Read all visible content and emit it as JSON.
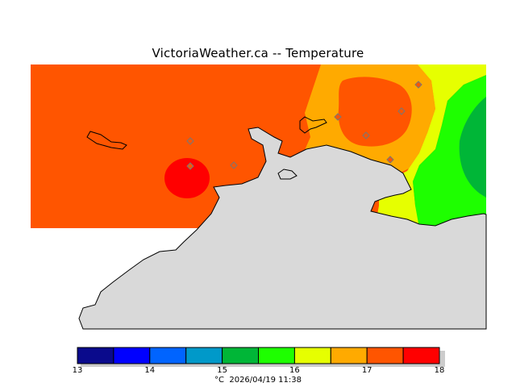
{
  "title": "VictoriaWeather.ca -- Temperature",
  "legend": {
    "bins": [
      {
        "from": 13.0,
        "to": 13.5,
        "color": "#0a0a8c"
      },
      {
        "from": 13.5,
        "to": 14.0,
        "color": "#0000ff"
      },
      {
        "from": 14.0,
        "to": 14.5,
        "color": "#0064ff"
      },
      {
        "from": 14.5,
        "to": 15.0,
        "color": "#0099c9"
      },
      {
        "from": 15.0,
        "to": 15.5,
        "color": "#00b637"
      },
      {
        "from": 15.5,
        "to": 16.0,
        "color": "#1eff00"
      },
      {
        "from": 16.0,
        "to": 16.5,
        "color": "#e6ff00"
      },
      {
        "from": 16.5,
        "to": 17.0,
        "color": "#ffaa00"
      },
      {
        "from": 17.0,
        "to": 17.5,
        "color": "#ff5500"
      },
      {
        "from": 17.5,
        "to": 18.0,
        "color": "#ff0000"
      }
    ],
    "ticks": [
      "13",
      "14",
      "15",
      "16",
      "17",
      "18"
    ],
    "unit": "°C",
    "timestamp": "2026/04/19 11:38"
  },
  "colors": {
    "land_mask": "#d9d9d9",
    "station_marker": "#777777"
  }
}
